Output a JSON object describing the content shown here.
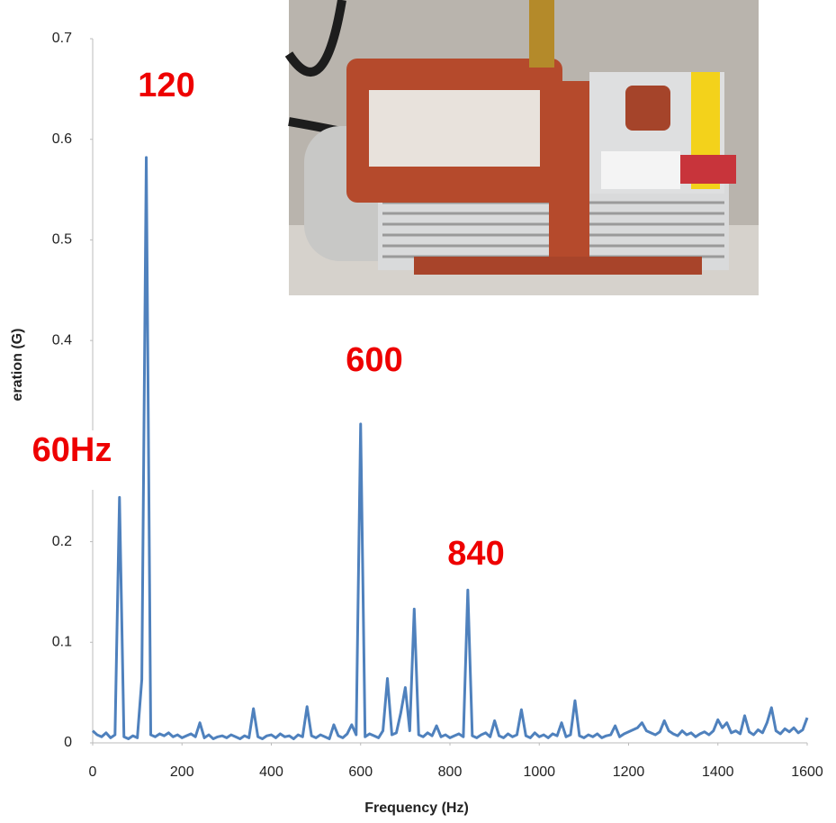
{
  "chart_data": {
    "type": "line",
    "xlabel": "Frequency (Hz)",
    "ylabel": "eration (G)",
    "xlim": [
      0,
      1600
    ],
    "xticks": [
      0,
      200,
      400,
      600,
      800,
      1000,
      1200,
      1400,
      1600
    ],
    "ylim": [
      0,
      0.7
    ],
    "yticks": [
      0,
      0.1,
      0.2,
      0.4,
      0.5,
      0.6,
      0.7
    ],
    "grid": false,
    "annotations": [
      "120",
      "600",
      "60Hz",
      "840"
    ],
    "series": [
      {
        "color": "#4f81bd",
        "x": [
          0,
          10,
          20,
          30,
          40,
          50,
          60,
          70,
          80,
          90,
          100,
          110,
          120,
          130,
          140,
          150,
          160,
          170,
          180,
          190,
          200,
          210,
          220,
          230,
          240,
          250,
          260,
          270,
          280,
          290,
          300,
          310,
          320,
          330,
          340,
          350,
          360,
          370,
          380,
          390,
          400,
          410,
          420,
          430,
          440,
          450,
          460,
          470,
          480,
          490,
          500,
          510,
          520,
          530,
          540,
          550,
          560,
          570,
          580,
          590,
          600,
          610,
          620,
          630,
          640,
          650,
          660,
          670,
          680,
          690,
          700,
          710,
          720,
          730,
          740,
          750,
          760,
          770,
          780,
          790,
          800,
          810,
          820,
          830,
          840,
          850,
          860,
          870,
          880,
          890,
          900,
          910,
          920,
          930,
          940,
          950,
          960,
          970,
          980,
          990,
          1000,
          1010,
          1020,
          1030,
          1040,
          1050,
          1060,
          1070,
          1080,
          1090,
          1100,
          1110,
          1120,
          1130,
          1140,
          1150,
          1160,
          1170,
          1180,
          1190,
          1200,
          1210,
          1220,
          1230,
          1240,
          1250,
          1260,
          1270,
          1280,
          1290,
          1300,
          1310,
          1320,
          1330,
          1340,
          1350,
          1360,
          1370,
          1380,
          1390,
          1400,
          1410,
          1420,
          1430,
          1440,
          1450,
          1460,
          1470,
          1480,
          1490,
          1500,
          1510,
          1520,
          1530,
          1540,
          1550,
          1560,
          1570,
          1580,
          1590,
          1600
        ],
        "values": [
          0.012,
          0.008,
          0.006,
          0.01,
          0.005,
          0.008,
          0.244,
          0.006,
          0.004,
          0.007,
          0.005,
          0.063,
          0.582,
          0.008,
          0.006,
          0.009,
          0.007,
          0.01,
          0.006,
          0.008,
          0.005,
          0.007,
          0.009,
          0.006,
          0.02,
          0.005,
          0.008,
          0.004,
          0.006,
          0.007,
          0.005,
          0.008,
          0.006,
          0.004,
          0.007,
          0.005,
          0.034,
          0.006,
          0.004,
          0.007,
          0.008,
          0.005,
          0.009,
          0.006,
          0.007,
          0.004,
          0.008,
          0.006,
          0.036,
          0.007,
          0.005,
          0.008,
          0.006,
          0.004,
          0.018,
          0.007,
          0.005,
          0.009,
          0.018,
          0.008,
          0.317,
          0.006,
          0.009,
          0.007,
          0.005,
          0.012,
          0.064,
          0.008,
          0.01,
          0.03,
          0.055,
          0.012,
          0.133,
          0.008,
          0.006,
          0.01,
          0.007,
          0.017,
          0.006,
          0.008,
          0.005,
          0.007,
          0.009,
          0.006,
          0.152,
          0.007,
          0.005,
          0.008,
          0.01,
          0.006,
          0.022,
          0.007,
          0.005,
          0.009,
          0.006,
          0.008,
          0.033,
          0.007,
          0.005,
          0.01,
          0.006,
          0.008,
          0.005,
          0.009,
          0.007,
          0.02,
          0.006,
          0.008,
          0.042,
          0.007,
          0.005,
          0.008,
          0.006,
          0.009,
          0.005,
          0.007,
          0.008,
          0.017,
          0.006,
          0.009,
          0.011,
          0.013,
          0.015,
          0.02,
          0.012,
          0.01,
          0.008,
          0.011,
          0.022,
          0.012,
          0.009,
          0.007,
          0.012,
          0.008,
          0.01,
          0.006,
          0.009,
          0.011,
          0.008,
          0.012,
          0.023,
          0.015,
          0.02,
          0.01,
          0.012,
          0.009,
          0.027,
          0.011,
          0.008,
          0.013,
          0.01,
          0.02,
          0.035,
          0.012,
          0.009,
          0.014,
          0.011,
          0.015,
          0.01,
          0.013,
          0.025
        ]
      }
    ]
  }
}
